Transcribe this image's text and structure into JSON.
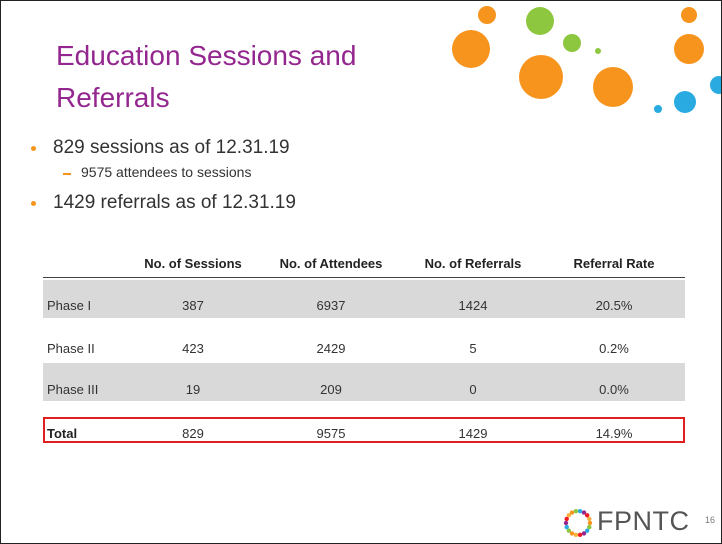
{
  "slide": {
    "title": "Education Sessions and Referrals",
    "bullets": [
      {
        "text": "829 sessions as of 12.31.19",
        "sub": [
          "9575 attendees to sessions"
        ]
      },
      {
        "text": "1429 referrals as of 12.31.19",
        "sub": []
      }
    ],
    "table": {
      "header": [
        "",
        "No. of Sessions",
        "No. of Attendees",
        "No. of Referrals",
        "Referral Rate"
      ],
      "rows": [
        [
          "Phase I",
          "387",
          "6937",
          "1424",
          "20.5%"
        ],
        [
          "Phase II",
          "423",
          "2429",
          "5",
          "0.2%"
        ],
        [
          "Phase III",
          "19",
          "209",
          "0",
          "0.0%"
        ],
        [
          "Total",
          "829",
          "9575",
          "1429",
          "14.9%"
        ]
      ]
    },
    "logo": "FPNTC",
    "page_number": "16"
  }
}
